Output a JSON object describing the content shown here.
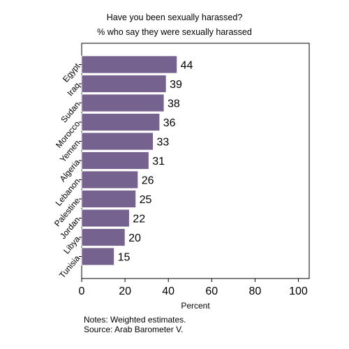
{
  "chart_data": {
    "type": "bar",
    "orientation": "horizontal",
    "title": "Have you been sexually harassed?",
    "subtitle": "% who say they were sexually harassed",
    "xlabel": "Percent",
    "ylabel": "",
    "xlim": [
      0,
      105
    ],
    "xticks": [
      0,
      20,
      40,
      60,
      80,
      100
    ],
    "categories": [
      "Egypt",
      "Iraq",
      "Sudan",
      "Morocco",
      "Yemen",
      "Algeria",
      "Lebanon",
      "Palestine",
      "Jordan",
      "Libya",
      "Tunisia"
    ],
    "values": [
      44,
      39,
      38,
      36,
      33,
      31,
      26,
      25,
      22,
      20,
      15
    ],
    "bar_color": "#75628F",
    "grid": false,
    "data_labels": true
  },
  "notes": {
    "line1": "Notes: Weighted estimates.",
    "line2": "Source: Arab Barometer V."
  }
}
